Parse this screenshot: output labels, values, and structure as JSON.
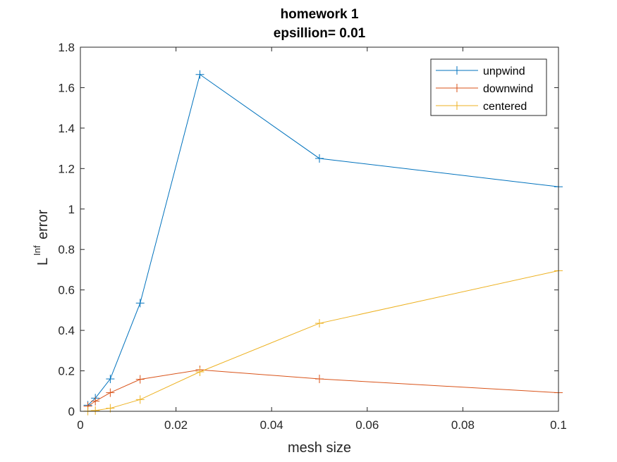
{
  "chart_data": {
    "type": "line",
    "title": "homework 1",
    "subtitle": "epsillion= 0.01",
    "xlabel": "mesh size",
    "ylabel_base": "L",
    "ylabel_sup": "Inf",
    "ylabel_rest": "error",
    "xlim": [
      0,
      0.1
    ],
    "ylim": [
      0,
      1.8
    ],
    "xticks": [
      0,
      0.02,
      0.04,
      0.06,
      0.08,
      0.1
    ],
    "xtick_labels": [
      "0",
      "0.02",
      "0.04",
      "0.06",
      "0.08",
      "0.1"
    ],
    "yticks": [
      0,
      0.2,
      0.4,
      0.6,
      0.8,
      1,
      1.2,
      1.4,
      1.6,
      1.8
    ],
    "ytick_labels": [
      "0",
      "0.2",
      "0.4",
      "0.6",
      "0.8",
      "1",
      "1.2",
      "1.4",
      "1.6",
      "1.8"
    ],
    "grid": false,
    "legend_position": "top-right",
    "x": [
      0.1,
      0.05,
      0.025,
      0.0125,
      0.00625,
      0.003125,
      0.0015625
    ],
    "series": [
      {
        "name": "unpwind",
        "color": "#0072BD",
        "marker": "+",
        "values": [
          1.11,
          1.25,
          1.665,
          0.535,
          0.16,
          0.065,
          0.03
        ]
      },
      {
        "name": "downwind",
        "color": "#D95319",
        "marker": "+",
        "values": [
          0.092,
          0.16,
          0.205,
          0.158,
          0.092,
          0.05,
          0.025
        ]
      },
      {
        "name": "centered",
        "color": "#EDB120",
        "marker": "+",
        "values": [
          0.695,
          0.435,
          0.195,
          0.058,
          0.015,
          0.004,
          0.001
        ]
      }
    ]
  }
}
